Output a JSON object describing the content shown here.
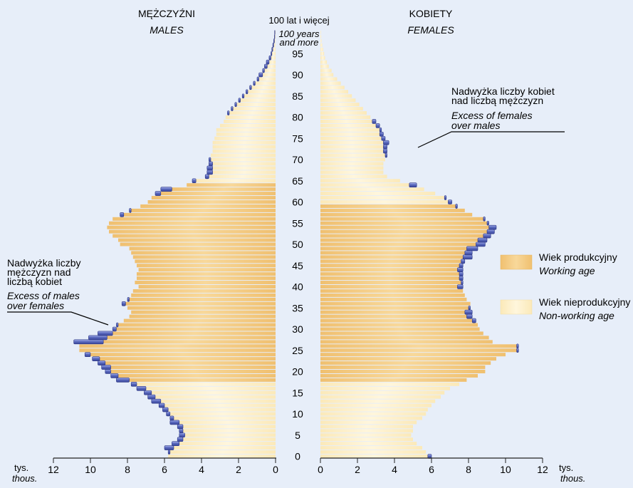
{
  "titles": {
    "males_pl": "MĘŻCZYŹNI",
    "males_en": "MALES",
    "females_pl": "KOBIETY",
    "females_en": "FEMALES",
    "top_age_pl": "100 lat i więcej",
    "top_age_en_1": "100 years",
    "top_age_en_2": "and more"
  },
  "unit": {
    "pl": "tys.",
    "en": "thous."
  },
  "annotations": {
    "females_excess": [
      "Nadwyżka liczby kobiet",
      "nad liczbą mężczyzn",
      "Excess of females",
      "over males"
    ],
    "males_excess": [
      "Nadwyżka liczby",
      "mężczyzn nad",
      "liczbą kobiet",
      "Excess of males",
      "over females"
    ]
  },
  "legend": {
    "working_pl": "Wiek produkcyjny",
    "working_en": "Working age",
    "nonworking_pl": "Wiek nieprodukcyjny",
    "nonworking_en": "Non-working age"
  },
  "colors": {
    "background": "#e7eef9",
    "working": "#f3c67a",
    "nonworking": "#fcedc2",
    "excess": "#4f5fb3",
    "excess_light": "#8f9be0"
  },
  "chart_data": {
    "type": "bar",
    "orientation": "population-pyramid",
    "x_ticks": [
      0,
      2,
      4,
      6,
      8,
      10,
      12
    ],
    "xlim": [
      0,
      12
    ],
    "y_ticks": [
      0,
      5,
      10,
      15,
      20,
      25,
      30,
      35,
      40,
      45,
      50,
      55,
      60,
      65,
      70,
      75,
      80,
      85,
      90,
      95
    ],
    "ages": [
      0,
      1,
      2,
      3,
      4,
      5,
      6,
      7,
      8,
      9,
      10,
      11,
      12,
      13,
      14,
      15,
      16,
      17,
      18,
      19,
      20,
      21,
      22,
      23,
      24,
      25,
      26,
      27,
      28,
      29,
      30,
      31,
      32,
      33,
      34,
      35,
      36,
      37,
      38,
      39,
      40,
      41,
      42,
      43,
      44,
      45,
      46,
      47,
      48,
      49,
      50,
      51,
      52,
      53,
      54,
      55,
      56,
      57,
      58,
      59,
      60,
      61,
      62,
      63,
      64,
      65,
      66,
      67,
      68,
      69,
      70,
      71,
      72,
      73,
      74,
      75,
      76,
      77,
      78,
      79,
      80,
      81,
      82,
      83,
      84,
      85,
      86,
      87,
      88,
      89,
      90,
      91,
      92,
      93,
      94,
      95,
      96,
      97,
      98,
      99,
      100
    ],
    "males": [
      5.8,
      5.8,
      6.0,
      5.6,
      5.3,
      5.2,
      5.2,
      5.3,
      5.7,
      5.7,
      5.9,
      6.1,
      6.3,
      6.7,
      6.9,
      7.1,
      7.5,
      7.8,
      8.6,
      8.9,
      9.2,
      9.4,
      9.6,
      9.9,
      10.3,
      10.6,
      10.6,
      10.9,
      10.1,
      9.6,
      8.8,
      8.6,
      8.2,
      7.9,
      7.8,
      8.0,
      8.3,
      8.0,
      7.8,
      7.7,
      7.4,
      7.6,
      7.5,
      7.5,
      7.4,
      7.5,
      7.6,
      7.7,
      7.8,
      7.9,
      8.4,
      8.5,
      8.8,
      9.0,
      9.1,
      9.0,
      8.8,
      8.4,
      7.9,
      7.3,
      6.9,
      6.7,
      6.5,
      6.2,
      4.8,
      4.5,
      3.8,
      3.7,
      3.7,
      3.6,
      3.6,
      3.5,
      3.4,
      3.4,
      3.4,
      3.3,
      3.2,
      3.2,
      3.0,
      2.8,
      2.7,
      2.6,
      2.4,
      2.2,
      2.0,
      1.8,
      1.6,
      1.4,
      1.2,
      1.0,
      0.9,
      0.7,
      0.6,
      0.5,
      0.35,
      0.25,
      0.2,
      0.15,
      0.1,
      0.06,
      0.05
    ],
    "females": [
      6.0,
      5.7,
      5.5,
      5.2,
      5.0,
      4.9,
      5.0,
      5.0,
      5.2,
      5.5,
      5.7,
      5.8,
      6.0,
      6.2,
      6.5,
      6.7,
      7.0,
      7.5,
      7.9,
      8.5,
      8.9,
      8.9,
      9.2,
      9.5,
      10.0,
      10.7,
      10.7,
      9.3,
      9.1,
      8.8,
      8.6,
      8.5,
      8.4,
      8.2,
      8.2,
      8.1,
      8.1,
      7.9,
      7.8,
      7.7,
      7.7,
      7.7,
      7.7,
      7.7,
      7.7,
      7.7,
      7.8,
      8.2,
      8.2,
      8.5,
      8.9,
      9.0,
      9.2,
      9.4,
      9.5,
      9.1,
      8.9,
      8.2,
      7.8,
      7.4,
      7.1,
      6.8,
      6.2,
      5.6,
      5.2,
      4.3,
      3.6,
      3.4,
      3.4,
      3.4,
      3.5,
      3.6,
      3.6,
      3.6,
      3.7,
      3.5,
      3.4,
      3.3,
      3.2,
      3.0,
      2.7,
      2.5,
      2.3,
      2.1,
      1.9,
      1.7,
      1.5,
      1.3,
      1.1,
      0.9,
      0.7,
      0.6,
      0.45,
      0.35,
      0.25,
      0.2,
      0.15,
      0.1,
      0.06,
      0.04,
      0.03
    ],
    "working_age": {
      "males": [
        18,
        64
      ],
      "females": [
        18,
        59
      ]
    }
  }
}
